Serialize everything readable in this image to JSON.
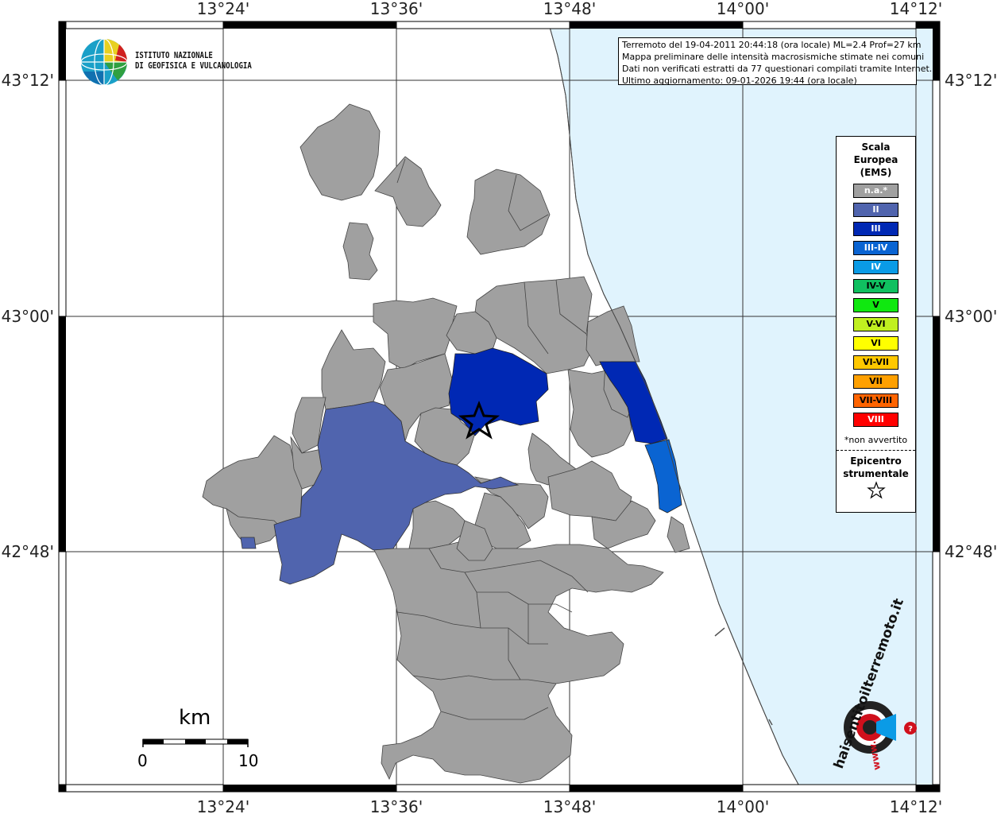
{
  "map": {
    "title_lines": [
      "Terremoto del 19-04-2011 20:44:18 (ora locale) ML=2.4 Prof=27 km",
      "Mappa preliminare delle intensità macrosismiche stimate nei comuni",
      "Dati non verificati estratti da 77 questionari compilati tramite Internet.",
      "Ultimo aggiornamento: 09-01-2026 19:44 (ora locale)"
    ],
    "lon_labels": [
      "13°24'",
      "13°36'",
      "13°48'",
      "14°00'",
      "14°12'"
    ],
    "lat_labels": [
      "43°12'",
      "43°00'",
      "42°48'"
    ],
    "colors": {
      "sea": "#e0f3fd",
      "na": "#a0a0a0",
      "II": "#5064ae",
      "III": "#0028b4",
      "III-IV": "#0a64d2"
    }
  },
  "logo": {
    "line1": "ISTITUTO NAZIONALE",
    "line2": "DI GEOFISICA E VULCANOLOGIA"
  },
  "legend": {
    "title_lines": [
      "Scala",
      "Europea",
      "(EMS)"
    ],
    "items": [
      {
        "label": "n.a.*",
        "color": "#a0a0a0",
        "text_color": "#ffffff"
      },
      {
        "label": "II",
        "color": "#5064ae",
        "text_color": "#ffffff"
      },
      {
        "label": "III",
        "color": "#0028b4",
        "text_color": "#ffffff"
      },
      {
        "label": "III-IV",
        "color": "#0a64d2",
        "text_color": "#ffffff"
      },
      {
        "label": "IV",
        "color": "#0a9be6",
        "text_color": "#ffffff"
      },
      {
        "label": "IV-V",
        "color": "#10c060",
        "text_color": "#000000"
      },
      {
        "label": "V",
        "color": "#10e810",
        "text_color": "#000000"
      },
      {
        "label": "V-VI",
        "color": "#c0f020",
        "text_color": "#000000"
      },
      {
        "label": "VI",
        "color": "#ffff00",
        "text_color": "#000000"
      },
      {
        "label": "VI-VII",
        "color": "#ffc800",
        "text_color": "#000000"
      },
      {
        "label": "VII",
        "color": "#ffa000",
        "text_color": "#000000"
      },
      {
        "label": "VII-VIII",
        "color": "#ff6400",
        "text_color": "#000000"
      },
      {
        "label": "VIII",
        "color": "#ff0000",
        "text_color": "#ffffff"
      }
    ],
    "note": "*non avvertito",
    "epicenter_lines": [
      "Epicentro",
      "strumentale"
    ]
  },
  "scale_bar": {
    "unit": "km",
    "start": "0",
    "end": "10"
  },
  "watermark": {
    "text": "haisentitoilterremoto.it",
    "www": "www."
  }
}
